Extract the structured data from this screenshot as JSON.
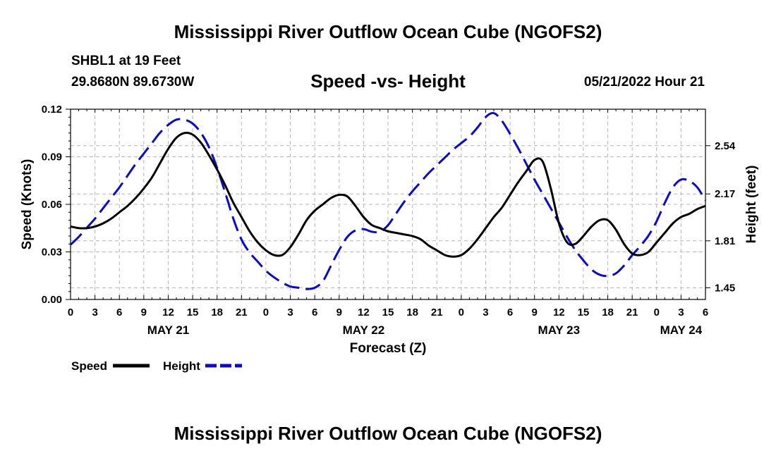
{
  "page": {
    "title": "Mississippi River Outflow Ocean Cube (NGOFS2)",
    "footer_title": "Mississippi River Outflow Ocean Cube (NGOFS2)",
    "station": "SHBL1 at 19 Feet",
    "coords": "29.8680N  89.6730W",
    "subtitle": "Speed -vs- Height",
    "datetime": "05/21/2022 Hour 21"
  },
  "chart_data": {
    "type": "line",
    "title": "Speed -vs- Height",
    "xlabel": "Forecast (Z)",
    "ylabel": "Speed (Knots)",
    "y2label": "Height (feet)",
    "xlim": [
      0,
      78
    ],
    "ylim": [
      0,
      0.12
    ],
    "y2lim": [
      1.36,
      2.82
    ],
    "x_ticks": [
      0,
      3,
      6,
      9,
      12,
      15,
      18,
      21,
      24,
      27,
      30,
      33,
      36,
      39,
      42,
      45,
      48,
      51,
      54,
      57,
      60,
      63,
      66,
      69,
      72,
      75,
      78
    ],
    "x_tick_labels": [
      "0",
      "3",
      "6",
      "9",
      "12",
      "15",
      "18",
      "21",
      "0",
      "3",
      "6",
      "9",
      "12",
      "15",
      "18",
      "21",
      "0",
      "3",
      "6",
      "9",
      "12",
      "15",
      "18",
      "21",
      "0",
      "3",
      "6"
    ],
    "date_labels": [
      {
        "x": 12,
        "label": "MAY 21"
      },
      {
        "x": 36,
        "label": "MAY 22"
      },
      {
        "x": 60,
        "label": "MAY 23"
      },
      {
        "x": 75,
        "label": "MAY 24"
      }
    ],
    "y_ticks": [
      0,
      0.03,
      0.06,
      0.09,
      0.12
    ],
    "y_tick_labels": [
      "0.00",
      "0.03",
      "0.06",
      "0.09",
      "0.12"
    ],
    "y2_ticks": [
      1.45,
      1.81,
      2.17,
      2.54
    ],
    "y2_tick_labels": [
      "1.45",
      "1.81",
      "2.17",
      "2.54"
    ],
    "grid": true,
    "series": [
      {
        "name": "Speed",
        "axis": "left",
        "color": "#000000",
        "dash": "solid",
        "x": [
          0,
          1,
          2,
          3,
          4,
          5,
          6,
          7,
          8,
          9,
          10,
          11,
          12,
          13,
          14,
          15,
          16,
          17,
          18,
          19,
          20,
          21,
          22,
          23,
          24,
          25,
          26,
          27,
          28,
          29,
          30,
          31,
          32,
          33,
          34,
          35,
          36,
          37,
          38,
          39,
          40,
          41,
          42,
          43,
          44,
          45,
          46,
          47,
          48,
          49,
          50,
          51,
          52,
          53,
          54,
          55,
          56,
          57,
          58,
          59,
          60,
          61,
          62,
          63,
          64,
          65,
          66,
          67,
          68,
          69,
          70,
          71,
          72,
          73,
          74,
          75,
          76,
          77,
          78
        ],
        "values": [
          0.046,
          0.045,
          0.045,
          0.046,
          0.048,
          0.051,
          0.055,
          0.059,
          0.064,
          0.07,
          0.077,
          0.086,
          0.095,
          0.102,
          0.105,
          0.104,
          0.099,
          0.091,
          0.082,
          0.072,
          0.061,
          0.052,
          0.043,
          0.036,
          0.031,
          0.028,
          0.028,
          0.033,
          0.041,
          0.05,
          0.056,
          0.06,
          0.064,
          0.066,
          0.065,
          0.059,
          0.052,
          0.047,
          0.045,
          0.043,
          0.042,
          0.041,
          0.04,
          0.038,
          0.034,
          0.031,
          0.028,
          0.027,
          0.028,
          0.032,
          0.038,
          0.045,
          0.052,
          0.058,
          0.066,
          0.074,
          0.081,
          0.088,
          0.087,
          0.07,
          0.048,
          0.036,
          0.035,
          0.04,
          0.046,
          0.05,
          0.05,
          0.044,
          0.035,
          0.029,
          0.028,
          0.03,
          0.036,
          0.042,
          0.048,
          0.052,
          0.054,
          0.057,
          0.059
        ]
      },
      {
        "name": "Height",
        "axis": "right",
        "color": "#0a0acc",
        "dash": "long-dash",
        "x": [
          0,
          1,
          2,
          3,
          4,
          5,
          6,
          7,
          8,
          9,
          10,
          11,
          12,
          13,
          14,
          15,
          16,
          17,
          18,
          19,
          20,
          21,
          22,
          23,
          24,
          25,
          26,
          27,
          28,
          29,
          30,
          31,
          32,
          33,
          34,
          35,
          36,
          37,
          38,
          39,
          40,
          41,
          42,
          43,
          44,
          45,
          46,
          47,
          48,
          49,
          50,
          51,
          52,
          53,
          54,
          55,
          56,
          57,
          58,
          59,
          60,
          61,
          62,
          63,
          64,
          65,
          66,
          67,
          68,
          69,
          70,
          71,
          72,
          73,
          74,
          75,
          76,
          77,
          78
        ],
        "values": [
          1.78,
          1.84,
          1.91,
          1.98,
          2.06,
          2.14,
          2.22,
          2.31,
          2.4,
          2.48,
          2.56,
          2.64,
          2.7,
          2.74,
          2.74,
          2.71,
          2.64,
          2.53,
          2.37,
          2.18,
          1.98,
          1.82,
          1.72,
          1.65,
          1.58,
          1.53,
          1.49,
          1.46,
          1.45,
          1.44,
          1.45,
          1.5,
          1.62,
          1.74,
          1.84,
          1.89,
          1.9,
          1.88,
          1.88,
          1.93,
          2.02,
          2.11,
          2.19,
          2.26,
          2.33,
          2.39,
          2.45,
          2.51,
          2.56,
          2.61,
          2.68,
          2.76,
          2.79,
          2.73,
          2.63,
          2.52,
          2.4,
          2.28,
          2.17,
          2.06,
          1.95,
          1.84,
          1.74,
          1.66,
          1.59,
          1.55,
          1.54,
          1.56,
          1.62,
          1.7,
          1.77,
          1.85,
          1.96,
          2.1,
          2.22,
          2.28,
          2.27,
          2.22,
          2.12
        ]
      }
    ],
    "legend": [
      {
        "label": "Speed",
        "color": "#000000",
        "dash": "solid"
      },
      {
        "label": "Height",
        "color": "#0a0acc",
        "dash": "long-dash"
      }
    ],
    "legend_position": "bottom-left"
  }
}
